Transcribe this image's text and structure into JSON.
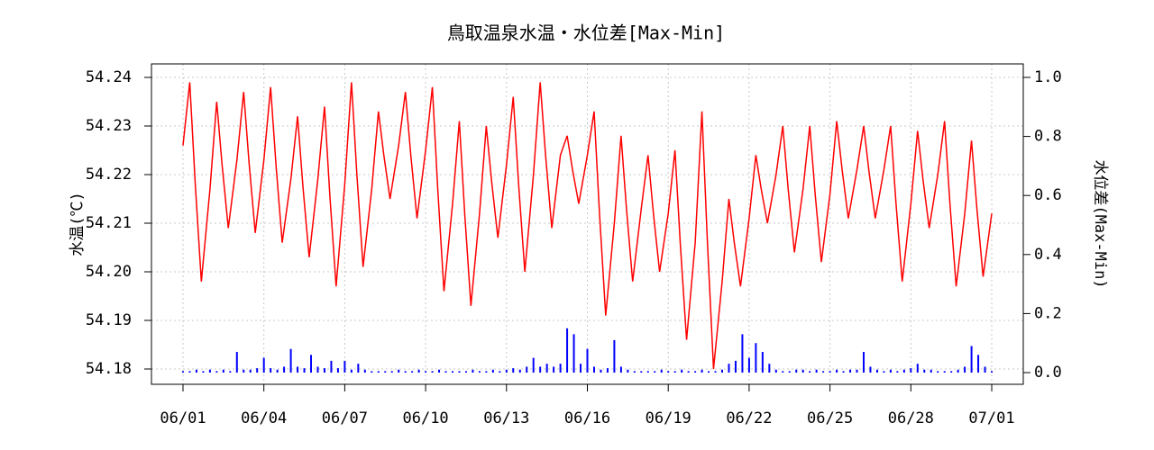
{
  "chart_data": {
    "type": "line",
    "title": "鳥取温泉水温・水位差[Max-Min]",
    "ylabel": "水温(℃)",
    "y2label": "水位差(Max-Min)",
    "xlim": [
      -1.17,
      31.17
    ],
    "xticks": [
      {
        "value": 0,
        "label": "06/01"
      },
      {
        "value": 3,
        "label": "06/04"
      },
      {
        "value": 6,
        "label": "06/07"
      },
      {
        "value": 9,
        "label": "06/10"
      },
      {
        "value": 12,
        "label": "06/13"
      },
      {
        "value": 15,
        "label": "06/16"
      },
      {
        "value": 18,
        "label": "06/19"
      },
      {
        "value": 21,
        "label": "06/22"
      },
      {
        "value": 24,
        "label": "06/25"
      },
      {
        "value": 27,
        "label": "06/28"
      },
      {
        "value": 30,
        "label": "07/01"
      }
    ],
    "ylim": [
      54.17685,
      54.24278
    ],
    "yticks": [
      54.18,
      54.19,
      {
        "value": 54.2,
        "label": "54.20"
      },
      54.21,
      54.22,
      54.23,
      54.24
    ],
    "y2lim": [
      -0.0396,
      1.0457
    ],
    "y2ticks": [
      {
        "value": 0,
        "label": "0.0"
      },
      0.2,
      0.4,
      0.6,
      0.8,
      {
        "value": 1,
        "label": "1.0"
      }
    ],
    "grid": true,
    "series": [
      {
        "color": "#ff0000",
        "style": "line",
        "x": [
          0,
          0.25,
          0.45,
          0.68,
          1,
          1.25,
          1.45,
          1.68,
          2,
          2.25,
          2.45,
          2.68,
          3,
          3.25,
          3.45,
          3.68,
          4,
          4.25,
          4.45,
          4.68,
          5,
          5.25,
          5.45,
          5.68,
          6,
          6.25,
          6.45,
          6.68,
          7,
          7.25,
          7.45,
          7.68,
          8,
          8.25,
          8.45,
          8.68,
          9,
          9.25,
          9.45,
          9.68,
          10,
          10.25,
          10.45,
          10.68,
          11,
          11.25,
          11.45,
          11.68,
          12,
          12.25,
          12.45,
          12.68,
          13,
          13.25,
          13.45,
          13.68,
          14,
          14.25,
          14.45,
          14.68,
          15,
          15.25,
          15.45,
          15.68,
          16,
          16.25,
          16.45,
          16.68,
          17,
          17.25,
          17.45,
          17.68,
          18,
          18.25,
          18.45,
          18.68,
          19,
          19.25,
          19.45,
          19.68,
          20,
          20.25,
          20.45,
          20.68,
          21,
          21.25,
          21.45,
          21.68,
          22,
          22.25,
          22.45,
          22.68,
          23,
          23.25,
          23.45,
          23.68,
          24,
          24.25,
          24.45,
          24.68,
          25,
          25.25,
          25.45,
          25.68,
          26,
          26.25,
          26.45,
          26.68,
          27,
          27.25,
          27.45,
          27.68,
          28,
          28.25,
          28.45,
          28.68,
          29,
          29.25,
          29.45,
          29.68,
          30
        ],
        "values": [
          54.226,
          54.239,
          54.2185,
          54.198,
          54.217,
          54.235,
          54.222,
          54.209,
          54.223,
          54.237,
          54.2225,
          54.208,
          54.223,
          54.238,
          54.222,
          54.206,
          54.219,
          54.232,
          54.2175,
          54.203,
          54.219,
          54.234,
          54.2155,
          54.197,
          54.218,
          54.239,
          54.22,
          54.201,
          54.217,
          54.233,
          54.224,
          54.215,
          54.226,
          54.237,
          54.224,
          54.211,
          54.225,
          54.238,
          54.217,
          54.196,
          54.214,
          54.231,
          54.212,
          54.193,
          54.212,
          54.23,
          54.2185,
          54.207,
          54.222,
          54.236,
          54.218,
          54.2,
          54.22,
          54.239,
          54.224,
          54.209,
          54.224,
          54.228,
          54.221,
          54.214,
          54.224,
          54.233,
          54.212,
          54.191,
          54.21,
          54.228,
          54.213,
          54.198,
          54.213,
          54.224,
          54.212,
          54.2,
          54.212,
          54.225,
          54.2055,
          54.186,
          54.206,
          54.233,
          54.2065,
          54.18,
          54.198,
          54.215,
          54.206,
          54.197,
          54.211,
          54.224,
          54.217,
          54.21,
          54.22,
          54.23,
          54.217,
          54.204,
          54.217,
          54.23,
          54.216,
          54.202,
          54.216,
          54.231,
          54.221,
          54.211,
          54.221,
          54.23,
          54.2205,
          54.211,
          54.221,
          54.23,
          54.214,
          54.198,
          54.214,
          54.229,
          54.219,
          54.209,
          54.22,
          54.231,
          54.214,
          54.197,
          54.212,
          54.227,
          54.213,
          54.199,
          54.212
        ]
      },
      {
        "color": "#0000ff",
        "style": "spikes",
        "axis": "y2",
        "x": [
          0,
          0.25,
          0.5,
          0.75,
          1,
          1.25,
          1.5,
          1.75,
          2,
          2.25,
          2.5,
          2.75,
          3,
          3.25,
          3.5,
          3.75,
          4,
          4.25,
          4.5,
          4.75,
          5,
          5.25,
          5.5,
          5.75,
          6,
          6.25,
          6.5,
          6.75,
          7,
          7.25,
          7.5,
          7.75,
          8,
          8.25,
          8.5,
          8.75,
          9,
          9.25,
          9.5,
          9.75,
          10,
          10.25,
          10.5,
          10.75,
          11,
          11.25,
          11.5,
          11.75,
          12,
          12.25,
          12.5,
          12.75,
          13,
          13.25,
          13.5,
          13.75,
          14,
          14.25,
          14.5,
          14.75,
          15,
          15.25,
          15.5,
          15.75,
          16,
          16.25,
          16.5,
          16.75,
          17,
          17.25,
          17.5,
          17.75,
          18,
          18.25,
          18.5,
          18.75,
          19,
          19.25,
          19.5,
          19.75,
          20,
          20.25,
          20.5,
          20.75,
          21,
          21.25,
          21.5,
          21.75,
          22,
          22.25,
          22.5,
          22.75,
          23,
          23.25,
          23.5,
          23.75,
          24,
          24.25,
          24.5,
          24.75,
          25,
          25.25,
          25.5,
          25.75,
          26,
          26.25,
          26.5,
          26.75,
          27,
          27.25,
          27.5,
          27.75,
          28,
          28.25,
          28.5,
          28.75,
          29,
          29.25,
          29.5,
          29.75,
          30
        ],
        "values": [
          0.005,
          0.005,
          0.01,
          0.005,
          0.01,
          0.005,
          0.01,
          0.005,
          0.07,
          0.01,
          0.01,
          0.015,
          0.05,
          0.015,
          0.01,
          0.02,
          0.08,
          0.02,
          0.015,
          0.06,
          0.02,
          0.015,
          0.04,
          0.015,
          0.04,
          0.01,
          0.03,
          0.01,
          0.005,
          0.005,
          0.005,
          0.005,
          0.01,
          0.005,
          0.005,
          0.01,
          0.005,
          0.005,
          0.01,
          0.005,
          0.005,
          0.005,
          0.005,
          0.01,
          0.005,
          0.005,
          0.01,
          0.005,
          0.01,
          0.015,
          0.01,
          0.02,
          0.05,
          0.02,
          0.03,
          0.02,
          0.03,
          0.15,
          0.13,
          0.03,
          0.08,
          0.02,
          0.01,
          0.015,
          0.11,
          0.02,
          0.01,
          0.005,
          0.005,
          0.005,
          0.005,
          0.01,
          0.005,
          0.005,
          0.01,
          0.005,
          0.005,
          0.01,
          0.005,
          0.005,
          0.01,
          0.03,
          0.04,
          0.13,
          0.05,
          0.1,
          0.07,
          0.03,
          0.01,
          0.005,
          0.005,
          0.01,
          0.01,
          0.005,
          0.01,
          0.005,
          0.005,
          0.01,
          0.005,
          0.01,
          0.01,
          0.07,
          0.02,
          0.01,
          0.005,
          0.01,
          0.005,
          0.01,
          0.015,
          0.03,
          0.01,
          0.01,
          0.005,
          0.005,
          0.005,
          0.01,
          0.02,
          0.09,
          0.06,
          0.02,
          0.005
        ]
      }
    ]
  }
}
